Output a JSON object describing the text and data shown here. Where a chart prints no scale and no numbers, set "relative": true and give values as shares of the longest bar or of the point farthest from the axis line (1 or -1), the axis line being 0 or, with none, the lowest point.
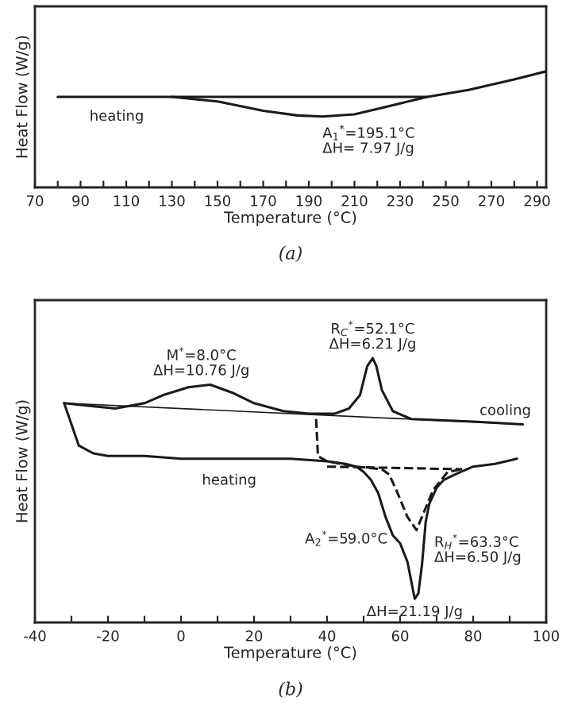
{
  "chart_data": [
    {
      "type": "line",
      "relative": true,
      "xlabel": "Temperature (°C)",
      "ylabel": "Heat Flow (W/g)",
      "xlim": [
        70,
        294
      ],
      "xticks": [
        70,
        {
          "value": 80,
          "label": null
        },
        90,
        {
          "value": 100,
          "label": null
        },
        110,
        {
          "value": 120,
          "label": null
        },
        130,
        {
          "value": 140,
          "label": null
        },
        150,
        {
          "value": 160,
          "label": null
        },
        170,
        {
          "value": 180,
          "label": null
        },
        190,
        {
          "value": 200,
          "label": null
        },
        210,
        {
          "value": 220,
          "label": null
        },
        230,
        {
          "value": 240,
          "label": null
        },
        250,
        {
          "value": 260,
          "label": null
        },
        270,
        {
          "value": 280,
          "label": null
        },
        290
      ],
      "tick_labels": "x",
      "grid": false,
      "legend": false,
      "series": [
        {
          "name": "heating",
          "color": "#1a1a1a",
          "line_style": "solid",
          "x": [
            80,
            110,
            130,
            150,
            170,
            185,
            196,
            210,
            225,
            242,
            260,
            280,
            294
          ],
          "values": [
            0.78,
            0.78,
            0.78,
            0.74,
            0.66,
            0.62,
            0.61,
            0.63,
            0.7,
            0.78,
            0.84,
            0.93,
            1.0
          ]
        },
        {
          "color": "#1a1a1a",
          "line_style": "solid",
          "x": [
            130,
            242
          ],
          "values": [
            0.78,
            0.78
          ]
        }
      ],
      "annotations": [
        {
          "text": "A$_{1}$$^{*}$=195.1°C\nΔH= 7.97 J/g",
          "x": 196,
          "y": 0.61
        },
        "(a)"
      ]
    },
    {
      "type": "line",
      "relative": true,
      "xlabel": "Temperature (°C)",
      "ylabel": "Heat Flow (W/g)",
      "xlim": [
        -40,
        100
      ],
      "xticks": [
        -40,
        {
          "value": -30,
          "label": null
        },
        -20,
        {
          "value": -10,
          "label": null
        },
        0,
        {
          "value": 10,
          "label": null
        },
        20,
        {
          "value": 30,
          "label": null
        },
        40,
        {
          "value": 50,
          "label": null
        },
        60,
        {
          "value": 70,
          "label": null
        },
        80,
        {
          "value": 90,
          "label": null
        },
        100
      ],
      "tick_labels": "x",
      "grid": false,
      "legend": false,
      "series": [
        {
          "name": "cooling",
          "color": "#1a1a1a",
          "line_style": "solid",
          "x": [
            93.6,
            80,
            63,
            58,
            55,
            53.5,
            52.5,
            51,
            49,
            46,
            42,
            35,
            28,
            20,
            14,
            8,
            2,
            -5,
            -10,
            -18,
            -25,
            -32
          ],
          "values": [
            0.75,
            0.76,
            0.77,
            0.8,
            0.88,
            0.97,
            1.0,
            0.97,
            0.86,
            0.81,
            0.79,
            0.79,
            0.8,
            0.83,
            0.87,
            0.9,
            0.89,
            0.86,
            0.83,
            0.81,
            0.82,
            0.83
          ]
        },
        {
          "name": "heating",
          "color": "#1a1a1a",
          "line_style": "solid",
          "x": [
            -32,
            -28,
            -24,
            -20,
            -10,
            0,
            10,
            20,
            30,
            40,
            45,
            48,
            50,
            52,
            54,
            56,
            58,
            60,
            62,
            63,
            64,
            65,
            66,
            67,
            68,
            70,
            72,
            75,
            80,
            86,
            92
          ],
          "values": [
            0.83,
            0.67,
            0.64,
            0.63,
            0.63,
            0.62,
            0.62,
            0.62,
            0.62,
            0.61,
            0.6,
            0.59,
            0.57,
            0.54,
            0.49,
            0.4,
            0.33,
            0.3,
            0.23,
            0.16,
            0.09,
            0.11,
            0.22,
            0.38,
            0.45,
            0.51,
            0.54,
            0.56,
            0.59,
            0.6,
            0.62
          ]
        },
        {
          "color": "#1a1a1a",
          "line_style": "solid",
          "x": [
            -32,
            93.6
          ],
          "values": [
            0.83,
            0.75
          ]
        },
        {
          "color": "#1a1a1a",
          "line_style": "dashed",
          "x": [
            37,
            37.5,
            40,
            48,
            55,
            57,
            59,
            62,
            64.5,
            66,
            69,
            73,
            77
          ],
          "values": [
            0.77,
            0.63,
            0.61,
            0.59,
            0.58,
            0.56,
            0.5,
            0.4,
            0.35,
            0.4,
            0.5,
            0.57,
            0.58
          ]
        },
        {
          "color": "#1a1a1a",
          "line_style": "dashed",
          "x": [
            40,
            77
          ],
          "values": [
            0.59,
            0.58
          ]
        }
      ],
      "annotations": [
        {
          "text": "M$^{*}$=8.0°C\nΔH=10.76 J/g",
          "x": 8,
          "y": 0.9
        },
        {
          "text": "R$_{C}$$^{*}$=52.1°C\nΔH=6.21 J/g",
          "x": 52.5,
          "y": 1.0
        },
        {
          "text": "R$_{H}$$^{*}$=63.3°C\nΔH=6.50 J/g",
          "x": 64.5,
          "y": 0.35
        },
        {
          "text": "A$_{2}$$^{*}$=59.0°C",
          "x": 59,
          "y": 0.3
        },
        {
          "text": "ΔH=21.19 J/g",
          "x": 64,
          "y": 0.09
        },
        "(b)"
      ]
    }
  ]
}
